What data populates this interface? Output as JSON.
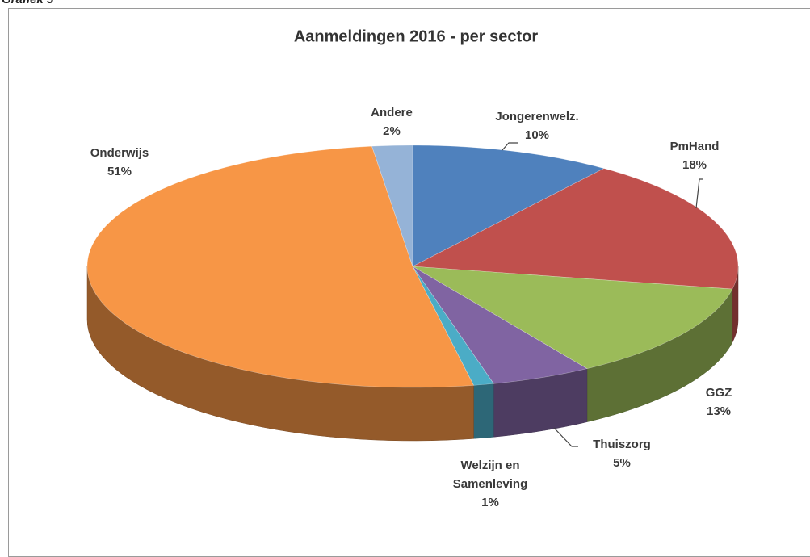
{
  "page_caption": "Grafiek 5",
  "chart_data": {
    "type": "pie3d",
    "title": "Aanmeldingen  2016 - per sector",
    "categories": [
      "Jongerenwelz.",
      "PmHand",
      "GGZ",
      "Thuiszorg",
      "Welzijn en Samenleving",
      "Onderwijs",
      "Andere"
    ],
    "values": [
      10,
      18,
      13,
      5,
      1,
      51,
      2
    ],
    "value_labels": [
      "10%",
      "18%",
      "13%",
      "5%",
      "1%",
      "51%",
      "2%"
    ],
    "colors": [
      "#4f81bd",
      "#c0504d",
      "#9bbb59",
      "#8064a2",
      "#4bacc6",
      "#f79646",
      "#95b3d7"
    ]
  }
}
